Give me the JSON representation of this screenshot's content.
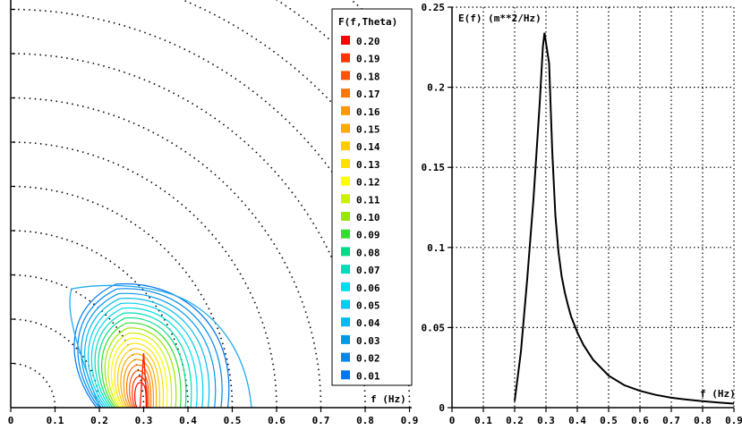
{
  "chart_data": [
    {
      "type": "heatmap",
      "subtype": "polar-contour",
      "xlabel": "f (Hz)",
      "xlim": [
        0,
        0.9
      ],
      "x_ticks": [
        "0",
        "0.1",
        "0.2",
        "0.3",
        "0.4",
        "0.5",
        "0.6",
        "0.7",
        "0.8",
        "0.9"
      ],
      "radial_rings_hz": [
        0.1,
        0.2,
        0.3,
        0.4,
        0.5,
        0.6,
        0.7,
        0.8,
        0.9,
        1.0,
        1.1,
        1.2,
        1.3,
        1.4,
        1.5
      ],
      "peak_frequency": 0.3,
      "legend_title": "F(f,Theta)",
      "legend_placement": "right",
      "legend_entries": [
        {
          "label": "0.20",
          "color": "#ff0000"
        },
        {
          "label": "0.19",
          "color": "#ff3300"
        },
        {
          "label": "0.18",
          "color": "#ff5500"
        },
        {
          "label": "0.17",
          "color": "#ff7700"
        },
        {
          "label": "0.16",
          "color": "#ff9900"
        },
        {
          "label": "0.15",
          "color": "#ffaa00"
        },
        {
          "label": "0.14",
          "color": "#ffcc00"
        },
        {
          "label": "0.13",
          "color": "#ffe000"
        },
        {
          "label": "0.12",
          "color": "#ffff00"
        },
        {
          "label": "0.11",
          "color": "#ccf000"
        },
        {
          "label": "0.10",
          "color": "#99e600"
        },
        {
          "label": "0.09",
          "color": "#33dd33"
        },
        {
          "label": "0.08",
          "color": "#00dd88"
        },
        {
          "label": "0.07",
          "color": "#00ddbb"
        },
        {
          "label": "0.06",
          "color": "#00ddee"
        },
        {
          "label": "0.05",
          "color": "#00ccee"
        },
        {
          "label": "0.04",
          "color": "#00bbee"
        },
        {
          "label": "0.03",
          "color": "#0099ee"
        },
        {
          "label": "0.02",
          "color": "#0088ee"
        },
        {
          "label": "0.01",
          "color": "#0077ee"
        }
      ]
    },
    {
      "type": "line",
      "ylabel": "E(f) (m**2/Hz)",
      "xlabel": "f (Hz)",
      "xlim": [
        0,
        0.9
      ],
      "ylim": [
        0,
        0.25
      ],
      "x_ticks": [
        "0",
        "0.1",
        "0.2",
        "0.3",
        "0.4",
        "0.5",
        "0.6",
        "0.7",
        "0.8",
        "0.9"
      ],
      "y_ticks": [
        "0",
        "0.05",
        "0.1",
        "0.15",
        "0.2",
        "0.25"
      ],
      "grid": true,
      "series": [
        {
          "color": "#000000",
          "x": [
            0.2,
            0.22,
            0.24,
            0.26,
            0.27,
            0.28,
            0.29,
            0.295,
            0.31,
            0.32,
            0.33,
            0.34,
            0.35,
            0.36,
            0.37,
            0.38,
            0.4,
            0.42,
            0.45,
            0.5,
            0.55,
            0.6,
            0.65,
            0.7,
            0.75,
            0.8,
            0.85,
            0.9
          ],
          "y": [
            0.004,
            0.035,
            0.08,
            0.13,
            0.16,
            0.19,
            0.225,
            0.234,
            0.215,
            0.16,
            0.12,
            0.097,
            0.082,
            0.072,
            0.064,
            0.057,
            0.047,
            0.039,
            0.03,
            0.02,
            0.014,
            0.0105,
            0.008,
            0.0062,
            0.005,
            0.004,
            0.0032,
            0.0025
          ]
        }
      ]
    }
  ]
}
